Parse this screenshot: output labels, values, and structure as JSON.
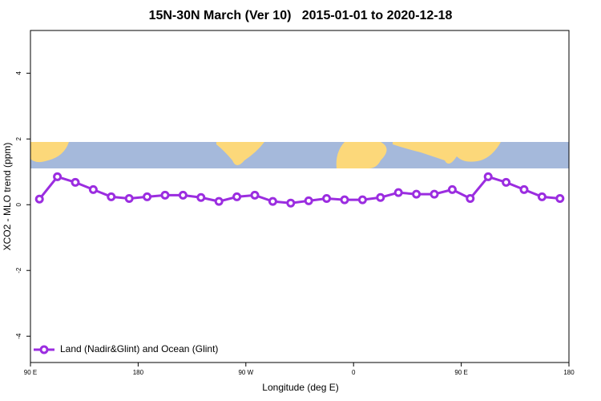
{
  "chart_data": {
    "type": "line",
    "title": "15N-30N March (Ver 10)   2015-01-01 to 2020-12-18",
    "xlabel": "Longitude (deg E)",
    "ylabel": "XCO2 - MLO trend (ppm)",
    "x": [
      97.5,
      112.5,
      127.5,
      142.5,
      157.5,
      172.5,
      187.5,
      202.5,
      217.5,
      232.5,
      247.5,
      262.5,
      277.5,
      292.5,
      307.5,
      322.5,
      337.5,
      352.5,
      367.5,
      382.5,
      397.5,
      412.5,
      427.5,
      442.5,
      457.5,
      472.5,
      487.5,
      502.5,
      517.5,
      532.5
    ],
    "series": [
      {
        "name": "Land (Nadir&Glint) and Ocean (Glint)",
        "color": "#9b2de0",
        "values": [
          0.17,
          0.85,
          0.68,
          0.46,
          0.24,
          0.19,
          0.24,
          0.29,
          0.29,
          0.22,
          0.1,
          0.24,
          0.29,
          0.1,
          0.05,
          0.12,
          0.19,
          0.15,
          0.15,
          0.22,
          0.37,
          0.32,
          0.32,
          0.46,
          0.19,
          0.85,
          0.68,
          0.46,
          0.24,
          0.19
        ]
      }
    ],
    "xlim": [
      90,
      540
    ],
    "xticks": [
      {
        "value": 90,
        "label": "90 E"
      },
      180,
      {
        "value": 270,
        "label": "90 W"
      },
      {
        "value": 360,
        "label": "0"
      },
      {
        "value": 450,
        "label": "90 E"
      },
      {
        "value": 540,
        "label": "180"
      }
    ],
    "ylim": [
      -4.8,
      5.3
    ],
    "yticks": [
      4,
      2,
      0,
      -2,
      -4
    ],
    "legend": "bottom-left"
  }
}
